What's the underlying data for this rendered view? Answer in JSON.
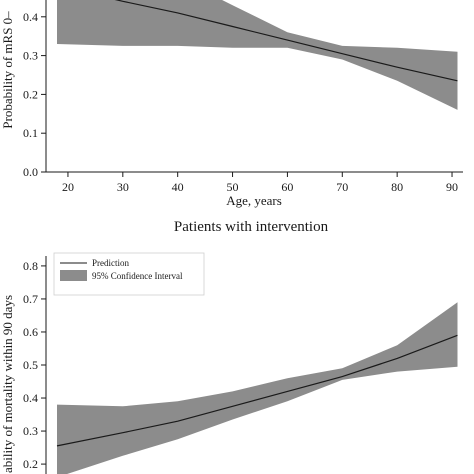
{
  "chart_data": [
    {
      "type": "line",
      "title": "",
      "xlabel": "Age, years",
      "ylabel": "Probability of mRS 0–",
      "xlim": [
        16,
        92
      ],
      "ylim": [
        0,
        0.5
      ],
      "x_ticks": [
        20,
        30,
        40,
        50,
        60,
        70,
        80,
        90
      ],
      "y_ticks": [
        0.0,
        0.1,
        0.2,
        0.3,
        0.4
      ],
      "y_tick_labels": [
        "0.0",
        "0.1",
        "0.2",
        "0.3",
        "0.4"
      ],
      "grid": false,
      "series": [
        {
          "name": "",
          "x": [
            18,
            30,
            40,
            50,
            60,
            70,
            80,
            91
          ],
          "values": [
            0.48,
            0.44,
            0.41,
            0.375,
            0.34,
            0.305,
            0.27,
            0.235
          ]
        }
      ],
      "band": {
        "name": "",
        "x": [
          18,
          30,
          40,
          50,
          60,
          70,
          80,
          91
        ],
        "lower": [
          0.33,
          0.325,
          0.325,
          0.32,
          0.32,
          0.29,
          0.235,
          0.16
        ],
        "upper": [
          0.62,
          0.56,
          0.5,
          0.43,
          0.36,
          0.325,
          0.32,
          0.31
        ]
      }
    },
    {
      "type": "line",
      "title": "Patients with intervention",
      "xlabel": "",
      "ylabel": "ability of mortality within 90 days",
      "xlim": [
        16,
        92
      ],
      "ylim": [
        0.17,
        0.83
      ],
      "x_ticks": [],
      "y_ticks": [
        0.2,
        0.3,
        0.4,
        0.5,
        0.6,
        0.7,
        0.8
      ],
      "y_tick_labels": [
        "0.2",
        "0.3",
        "0.4",
        "0.5",
        "0.6",
        "0.7",
        "0.8"
      ],
      "grid": false,
      "legend": {
        "position": "top-left",
        "entries": [
          "Prediction",
          "95% Confidence Interval"
        ]
      },
      "series": [
        {
          "name": "Prediction",
          "x": [
            18,
            30,
            40,
            50,
            60,
            70,
            80,
            91
          ],
          "values": [
            0.255,
            0.295,
            0.33,
            0.375,
            0.42,
            0.465,
            0.52,
            0.59
          ]
        }
      ],
      "band": {
        "name": "95% Confidence Interval",
        "x": [
          18,
          30,
          40,
          50,
          60,
          70,
          80,
          91
        ],
        "lower": [
          0.16,
          0.225,
          0.275,
          0.335,
          0.39,
          0.455,
          0.48,
          0.495
        ],
        "upper": [
          0.38,
          0.375,
          0.39,
          0.42,
          0.46,
          0.49,
          0.56,
          0.69
        ]
      }
    }
  ],
  "colors": {
    "band": "#8c8c8c",
    "line": "#1a1a1a",
    "axis": "#1a1a1a"
  }
}
